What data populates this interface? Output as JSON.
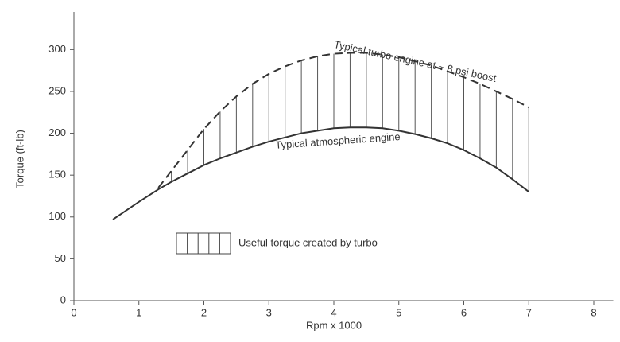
{
  "chart_data": {
    "type": "line",
    "xlabel": "Rpm x 1000",
    "ylabel": "Torque (ft-lb)",
    "x": [
      0.6,
      1,
      1.3,
      1.5,
      1.75,
      2,
      2.25,
      2.5,
      2.75,
      3,
      3.25,
      3.5,
      3.75,
      4,
      4.25,
      4.5,
      4.75,
      5,
      5.25,
      5.5,
      5.75,
      6,
      6.25,
      6.5,
      6.75,
      7
    ],
    "series": [
      {
        "name": "Typical atmospheric engine",
        "color": "#333333",
        "dash": false,
        "values": [
          97,
          118,
          133,
          142,
          152,
          162,
          170,
          177,
          184,
          190,
          195,
          200,
          203,
          206,
          207,
          207,
          206,
          203,
          199,
          194,
          188,
          180,
          170,
          159,
          145,
          130
        ]
      },
      {
        "name": "Typical turbo engine at ~ 8 psi boost",
        "color": "#333333",
        "dash": true,
        "values": [
          null,
          null,
          135,
          155,
          180,
          205,
          226,
          244,
          259,
          271,
          280,
          287,
          292,
          295,
          296,
          296,
          294,
          291,
          286,
          281,
          274,
          267,
          259,
          250,
          241,
          231
        ]
      }
    ],
    "fill_label": "Useful torque created by turbo",
    "xlim": [
      0,
      8.3
    ],
    "ylim": [
      0,
      345
    ],
    "xticks": [
      0,
      1,
      2,
      3,
      4,
      5,
      6,
      7,
      8
    ],
    "yticks": [
      0,
      50,
      100,
      150,
      200,
      250,
      300
    ],
    "grid": false
  }
}
